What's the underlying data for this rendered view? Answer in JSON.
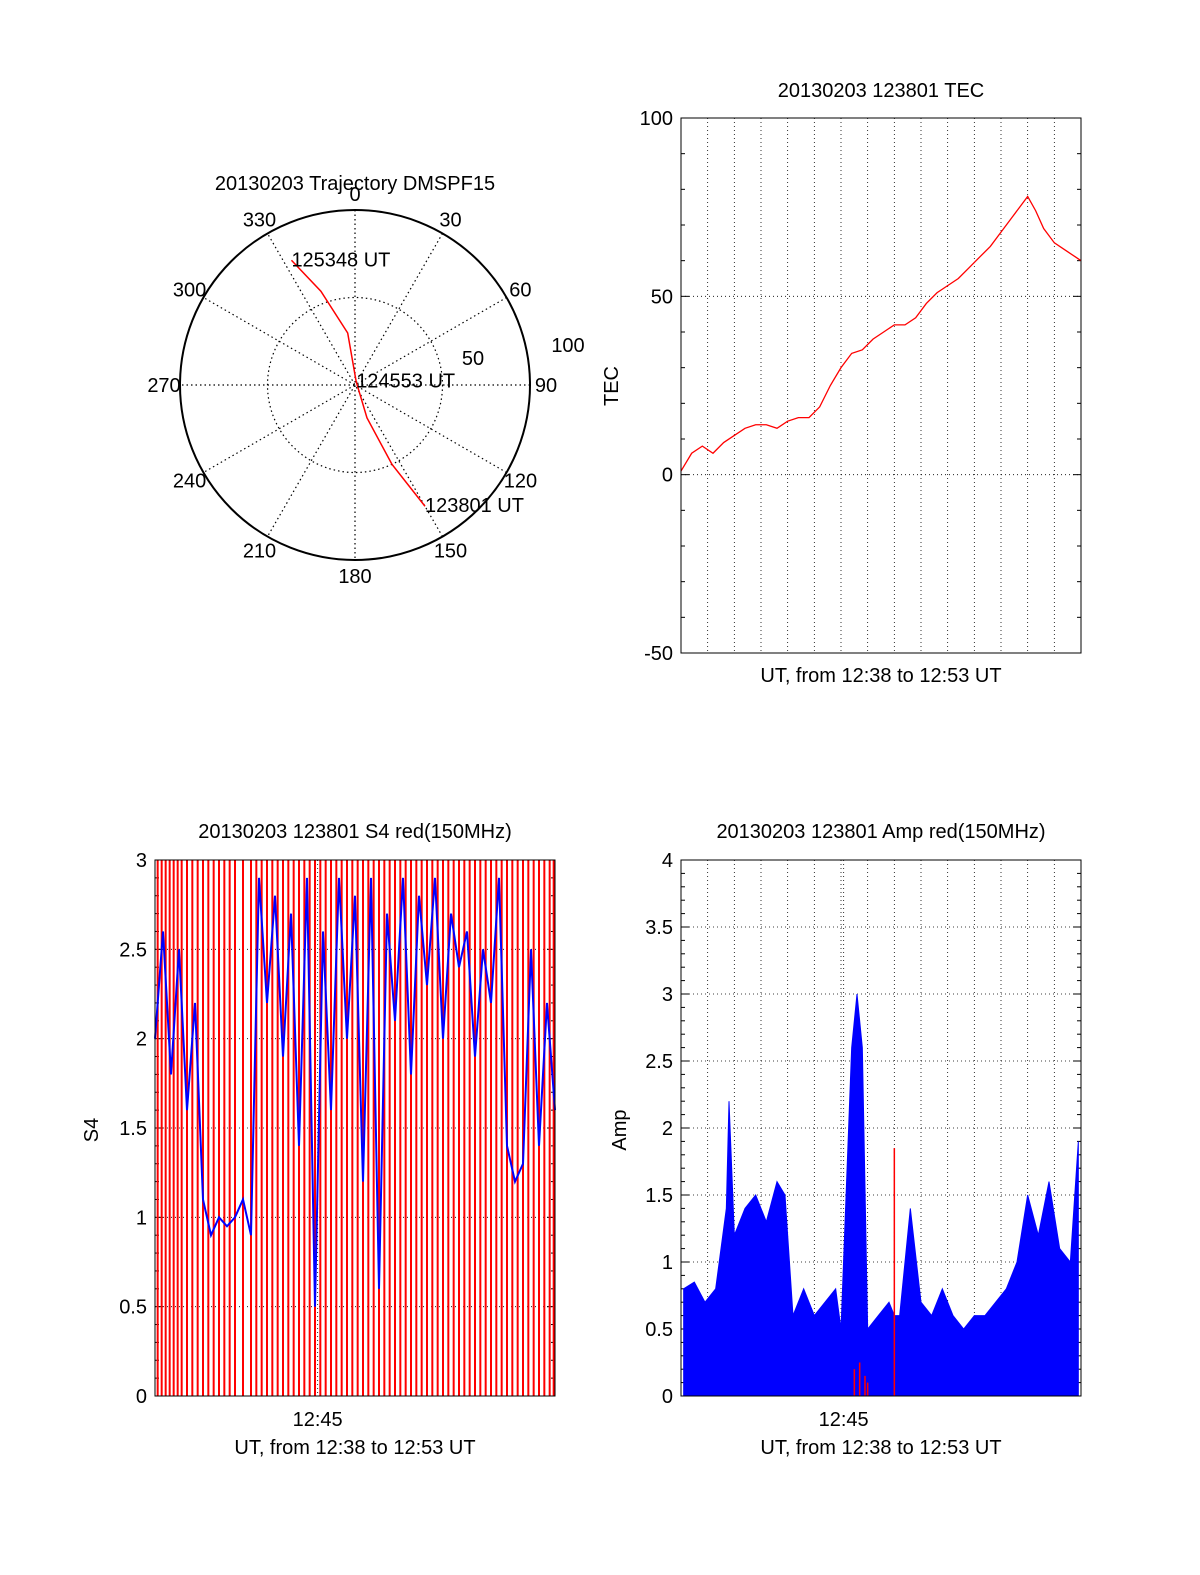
{
  "chart_data": [
    {
      "type": "polar",
      "title": "20130203 Trajectory DMSPF15",
      "angle_labels": [
        "0",
        "30",
        "60",
        "90",
        "120",
        "150",
        "180",
        "210",
        "240",
        "270",
        "300",
        "330"
      ],
      "radial_labels": [
        "50",
        "100"
      ],
      "rlim": [
        0,
        100
      ],
      "grid": true,
      "series": [
        {
          "color": "#ff0000",
          "points": [
            {
              "az": 333,
              "r": 80
            },
            {
              "az": 340,
              "r": 57
            },
            {
              "az": 352,
              "r": 30
            },
            {
              "az": 20,
              "r": 2
            },
            {
              "az": 160,
              "r": 20
            },
            {
              "az": 155,
              "r": 50
            },
            {
              "az": 150,
              "r": 80
            }
          ]
        }
      ],
      "annotations": [
        {
          "text": "125348 UT",
          "az": 333,
          "r": 80
        },
        {
          "text": "124553 UT",
          "az": 20,
          "r": 2
        },
        {
          "text": "123801 UT",
          "az": 150,
          "r": 80
        }
      ]
    },
    {
      "type": "line",
      "title": "20130203 123801 TEC",
      "xlabel": "UT, from 12:38 to 12:53 UT",
      "ylabel": "TEC",
      "xlim": [
        0,
        15
      ],
      "ylim": [
        -50,
        100
      ],
      "yticks": [
        "100",
        "50",
        "0",
        "-50"
      ],
      "grid": true,
      "series": [
        {
          "color": "#ff0000",
          "x": [
            0,
            0.4,
            0.8,
            1.2,
            1.6,
            2.0,
            2.4,
            2.8,
            3.2,
            3.6,
            4.0,
            4.4,
            4.8,
            5.2,
            5.6,
            6.0,
            6.4,
            6.8,
            7.2,
            7.6,
            8.0,
            8.4,
            8.8,
            9.2,
            9.6,
            10.0,
            10.4,
            10.8,
            11.2,
            11.6,
            12.0,
            12.4,
            12.8,
            13.0,
            13.3,
            13.6,
            14.0,
            14.4,
            14.8,
            15.0
          ],
          "y": [
            1,
            6,
            8,
            6,
            9,
            11,
            13,
            14,
            14,
            13,
            15,
            16,
            16,
            19,
            25,
            30,
            34,
            35,
            38,
            40,
            42,
            42,
            44,
            48,
            51,
            53,
            55,
            58,
            61,
            64,
            68,
            72,
            76,
            78,
            74,
            69,
            65,
            63,
            61,
            60
          ]
        }
      ]
    },
    {
      "type": "line",
      "title": "20130203 123801 S4 red(150MHz)",
      "xlabel": "UT, from 12:38 to 12:53 UT",
      "ylabel": "S4",
      "xlim": [
        0,
        15
      ],
      "xtick": {
        "value": 6.1,
        "label": "12:45"
      },
      "ylim": [
        0,
        3
      ],
      "yticks": [
        "0",
        "0.5",
        "1",
        "1.5",
        "2",
        "2.5",
        "3"
      ],
      "grid": true,
      "series": [
        {
          "color": "#ff0000",
          "x": [
            0.1,
            0.25,
            0.4,
            0.55,
            0.7,
            0.85,
            1.0,
            1.2,
            1.4,
            1.6,
            1.8,
            2.0,
            2.2,
            2.4,
            2.6,
            2.8,
            3.0,
            3.3,
            3.6,
            3.8,
            4.0,
            4.2,
            4.4,
            4.6,
            4.8,
            5.0,
            5.2,
            5.4,
            5.6,
            5.8,
            6.0,
            6.2,
            6.4,
            6.6,
            6.8,
            7.0,
            7.2,
            7.4,
            7.6,
            7.8,
            8.0,
            8.2,
            8.4,
            8.6,
            8.8,
            9.0,
            9.2,
            9.4,
            9.6,
            9.8,
            10.0,
            10.2,
            10.4,
            10.6,
            10.8,
            11.0,
            11.2,
            11.4,
            11.6,
            11.8,
            12.0,
            12.2,
            12.4,
            12.6,
            12.8,
            13.0,
            13.2,
            13.4,
            13.6,
            13.8,
            14.0,
            14.2,
            14.4,
            14.6,
            14.8,
            14.95
          ],
          "y": [
            3,
            3,
            3,
            3,
            3,
            3,
            3,
            3,
            3,
            3,
            3,
            3,
            3,
            3,
            3,
            3,
            3,
            3,
            3,
            3,
            3,
            3,
            3,
            3,
            3,
            3,
            3,
            3,
            3,
            3,
            3,
            3,
            3,
            3,
            3,
            3,
            3,
            3,
            3,
            3,
            3,
            3,
            3,
            3,
            3,
            3,
            3,
            3,
            3,
            3,
            3,
            3,
            3,
            3,
            3,
            3,
            3,
            3,
            3,
            3,
            3,
            3,
            3,
            3,
            3,
            3,
            3,
            3,
            3,
            3,
            3,
            3,
            3,
            3,
            3,
            3
          ]
        },
        {
          "color": "#0000ff",
          "x": [
            0,
            0.3,
            0.6,
            0.9,
            1.2,
            1.5,
            1.8,
            2.1,
            2.4,
            2.7,
            3.0,
            3.3,
            3.6,
            3.9,
            4.2,
            4.5,
            4.8,
            5.1,
            5.4,
            5.7,
            6.0,
            6.3,
            6.6,
            6.9,
            7.2,
            7.5,
            7.8,
            8.1,
            8.4,
            8.7,
            9.0,
            9.3,
            9.6,
            9.9,
            10.2,
            10.5,
            10.8,
            11.1,
            11.4,
            11.7,
            12.0,
            12.3,
            12.6,
            12.9,
            13.2,
            13.5,
            13.8,
            14.1,
            14.4,
            14.7,
            15.0
          ],
          "y": [
            2.0,
            2.6,
            1.8,
            2.5,
            1.6,
            2.2,
            1.1,
            0.9,
            1.0,
            0.95,
            1.0,
            1.1,
            0.9,
            2.9,
            2.2,
            2.8,
            1.9,
            2.7,
            1.4,
            2.9,
            0.5,
            2.6,
            1.6,
            2.9,
            2.0,
            2.8,
            1.2,
            2.9,
            0.6,
            2.7,
            2.1,
            2.9,
            1.8,
            2.8,
            2.3,
            2.9,
            2.0,
            2.7,
            2.4,
            2.6,
            1.9,
            2.5,
            2.2,
            2.9,
            1.4,
            1.2,
            1.3,
            2.5,
            1.4,
            2.2,
            1.6
          ]
        }
      ]
    },
    {
      "type": "line",
      "title": "20130203 123801 Amp red(150MHz)",
      "xlabel": "UT, from 12:38 to 12:53 UT",
      "ylabel": "Amp",
      "xlim": [
        0,
        15
      ],
      "xtick": {
        "value": 6.1,
        "label": "12:45"
      },
      "ylim": [
        0,
        4
      ],
      "yticks": [
        "0",
        "0.5",
        "1",
        "1.5",
        "2",
        "2.5",
        "3",
        "3.5",
        "4"
      ],
      "grid": true,
      "series": [
        {
          "color": "#0000ff",
          "x": [
            0.1,
            0.5,
            0.9,
            1.3,
            1.7,
            1.8,
            2.0,
            2.4,
            2.8,
            3.2,
            3.6,
            3.9,
            4.2,
            4.6,
            5.0,
            5.4,
            5.8,
            6.0,
            6.4,
            6.6,
            6.8,
            7.0,
            7.4,
            7.8,
            8.0,
            8.2,
            8.6,
            9.0,
            9.4,
            9.8,
            10.2,
            10.6,
            11.0,
            11.4,
            11.8,
            12.2,
            12.6,
            13.0,
            13.4,
            13.8,
            14.2,
            14.6,
            14.9
          ],
          "y": [
            0.8,
            0.85,
            0.7,
            0.8,
            1.4,
            2.2,
            1.2,
            1.4,
            1.5,
            1.3,
            1.6,
            1.5,
            0.6,
            0.8,
            0.6,
            0.7,
            0.8,
            0.5,
            2.6,
            3.0,
            2.6,
            0.5,
            0.6,
            0.7,
            0.6,
            0.6,
            1.4,
            0.7,
            0.6,
            0.8,
            0.6,
            0.5,
            0.6,
            0.6,
            0.7,
            0.8,
            1.0,
            1.5,
            1.2,
            1.6,
            1.1,
            1.0,
            1.9
          ]
        },
        {
          "color": "#ff0000",
          "x": [
            6.5,
            6.7,
            6.9,
            7.0,
            8.0
          ],
          "y": [
            0.2,
            0.25,
            0.15,
            0.1,
            1.85
          ]
        }
      ]
    }
  ]
}
